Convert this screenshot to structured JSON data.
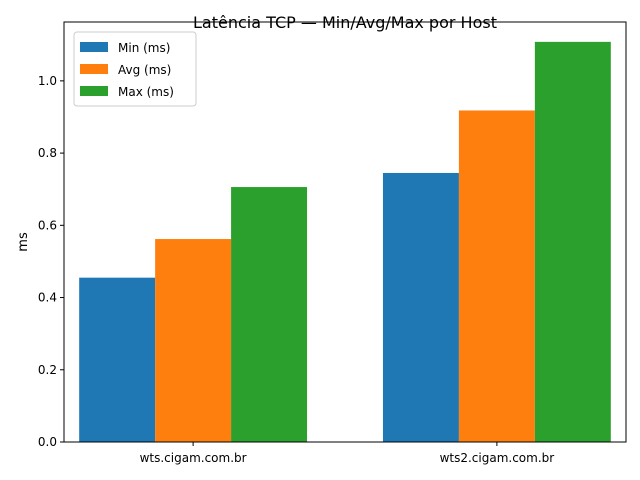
{
  "chart_data": {
    "type": "bar",
    "title": "Latência TCP — Min/Avg/Max por Host",
    "xlabel": "",
    "ylabel": "ms",
    "categories": [
      "wts.cigam.com.br",
      "wts2.cigam.com.br"
    ],
    "series": [
      {
        "name": "Min (ms)",
        "values": [
          0.455,
          0.745
        ],
        "color": "#1f77b4"
      },
      {
        "name": "Avg (ms)",
        "values": [
          0.562,
          0.918
        ],
        "color": "#ff7f0e"
      },
      {
        "name": "Max (ms)",
        "values": [
          0.706,
          1.108
        ],
        "color": "#2ca02c"
      }
    ],
    "ylim": [
      0,
      1.163
    ],
    "yticks": [
      0.0,
      0.2,
      0.4,
      0.6,
      0.8,
      1.0
    ],
    "ytick_labels": [
      "0.0",
      "0.2",
      "0.4",
      "0.6",
      "0.8",
      "1.0"
    ],
    "legend": "top-left",
    "grid": false
  }
}
